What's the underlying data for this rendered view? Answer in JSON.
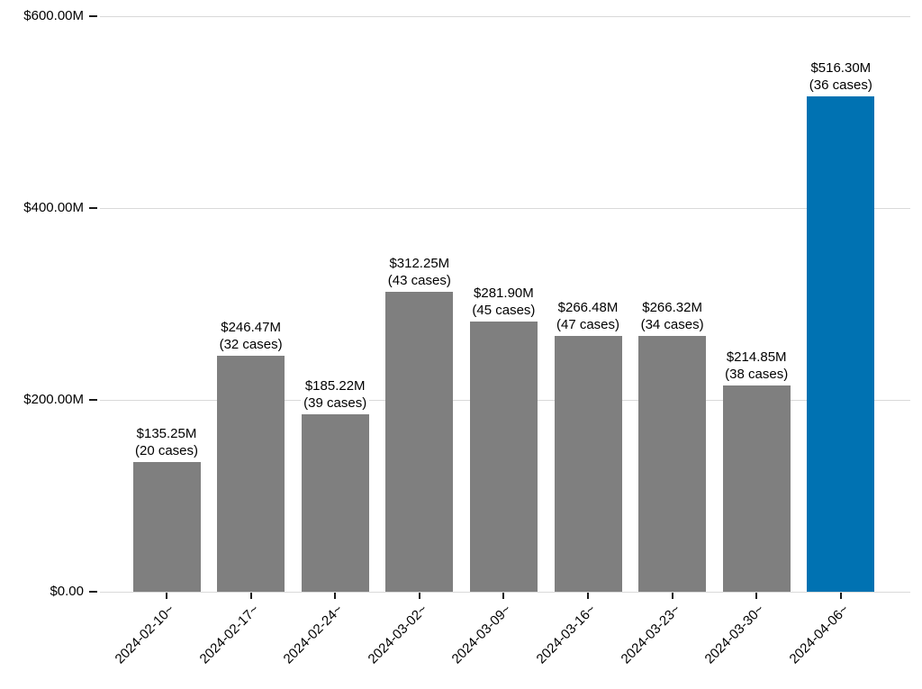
{
  "chart_data": {
    "type": "bar",
    "title": "",
    "xlabel": "",
    "ylabel": "",
    "ylim": [
      0,
      600
    ],
    "y_unit": "USD millions",
    "grid": true,
    "legend_position": "none",
    "x_tick_rotation_deg": 45,
    "y_ticks": [
      {
        "value": 600,
        "label": "$600.00M"
      },
      {
        "value": 400,
        "label": "$400.00M"
      },
      {
        "value": 200,
        "label": "$200.00M"
      },
      {
        "value": 0,
        "label": "$0.00"
      }
    ],
    "bars": [
      {
        "category": "2024-02-10~",
        "value": 135.25,
        "cases": 20,
        "label_value": "$135.25M",
        "label_cases": "(20 cases)",
        "highlighted": false
      },
      {
        "category": "2024-02-17~",
        "value": 246.47,
        "cases": 32,
        "label_value": "$246.47M",
        "label_cases": "(32 cases)",
        "highlighted": false
      },
      {
        "category": "2024-02-24~",
        "value": 185.22,
        "cases": 39,
        "label_value": "$185.22M",
        "label_cases": "(39 cases)",
        "highlighted": false
      },
      {
        "category": "2024-03-02~",
        "value": 312.25,
        "cases": 43,
        "label_value": "$312.25M",
        "label_cases": "(43 cases)",
        "highlighted": false
      },
      {
        "category": "2024-03-09~",
        "value": 281.9,
        "cases": 45,
        "label_value": "$281.90M",
        "label_cases": "(45 cases)",
        "highlighted": false
      },
      {
        "category": "2024-03-16~",
        "value": 266.48,
        "cases": 47,
        "label_value": "$266.48M",
        "label_cases": "(47 cases)",
        "highlighted": false
      },
      {
        "category": "2024-03-23~",
        "value": 266.32,
        "cases": 34,
        "label_value": "$266.32M",
        "label_cases": "(34 cases)",
        "highlighted": false
      },
      {
        "category": "2024-03-30~",
        "value": 214.85,
        "cases": 38,
        "label_value": "$214.85M",
        "label_cases": "(38 cases)",
        "highlighted": false
      },
      {
        "category": "2024-04-06~",
        "value": 516.3,
        "cases": 36,
        "label_value": "$516.30M",
        "label_cases": "(36 cases)",
        "highlighted": true
      }
    ]
  },
  "colors": {
    "bar_default": "#7f7f7f",
    "bar_highlight": "#0072b2",
    "gridline": "#d9d9d9",
    "tick_mark": "#1a1a1a",
    "label_text": "#000000",
    "background": "#ffffff"
  }
}
